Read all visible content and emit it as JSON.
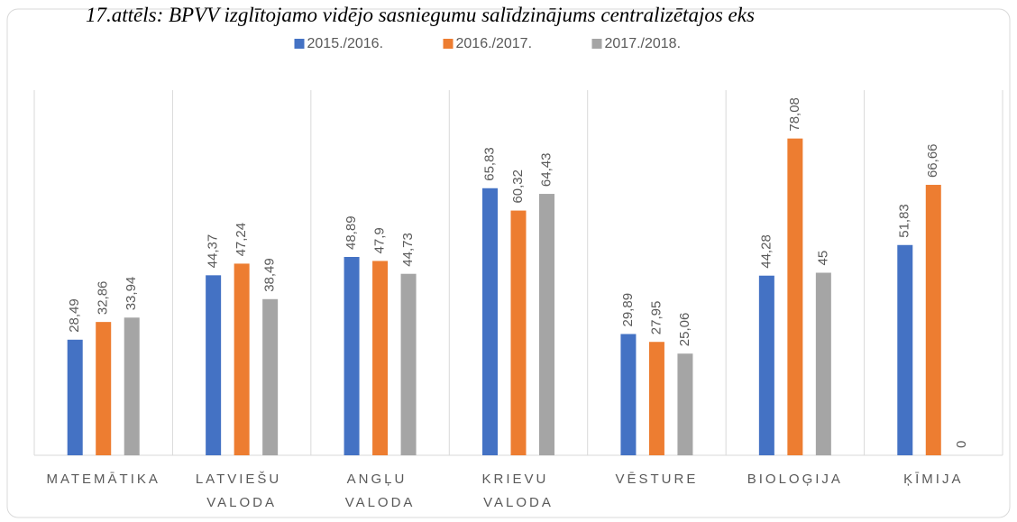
{
  "chart_data": {
    "type": "bar",
    "title": "17.attēls: BPVV izglītojamo vidējo sasniegumu salīdzinājums centralizētajos eks",
    "categories": [
      "MATEMĀTIKA",
      "LATVIEŠU VALODA",
      "ANGĻU VALODA",
      "KRIEVU VALODA",
      "VĒSTURE",
      "BIOLOĢIJA",
      "ĶĪMIJA"
    ],
    "series": [
      {
        "name": "2015./2016.",
        "color": "#4472c4",
        "values": [
          28.49,
          44.37,
          48.89,
          65.83,
          29.89,
          44.28,
          51.83
        ],
        "value_labels": [
          "28,49",
          "44,37",
          "48,89",
          "65,83",
          "29,89",
          "44,28",
          "51,83"
        ]
      },
      {
        "name": "2016./2017.",
        "color": "#ed7d31",
        "values": [
          32.86,
          47.24,
          47.9,
          60.32,
          27.95,
          78.08,
          66.66
        ],
        "value_labels": [
          "32,86",
          "47,24",
          "47,9",
          "60,32",
          "27,95",
          "78,08",
          "66,66"
        ]
      },
      {
        "name": "2017./2018.",
        "color": "#a5a5a5",
        "values": [
          33.94,
          38.49,
          44.73,
          64.43,
          25.06,
          45,
          0
        ],
        "value_labels": [
          "33,94",
          "38,49",
          "44,73",
          "64,43",
          "25,06",
          "45",
          "0"
        ]
      }
    ],
    "ylim": [
      0,
      90
    ],
    "legend": "top"
  }
}
